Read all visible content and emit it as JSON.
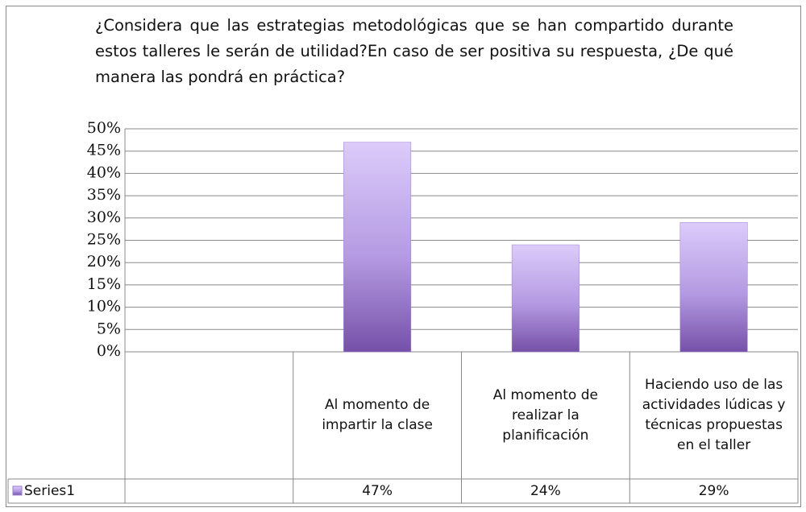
{
  "chart_data": {
    "type": "bar",
    "title": "¿Considera que las estrategias metodológicas que se han compartido durante estos talleres le serán de utilidad?En caso de ser positiva su respuesta, ¿De qué manera las pondrá en práctica?",
    "categories": [
      null,
      "Al momento de impartir la clase",
      "Al momento de realizar la planificación",
      "Haciendo uso de las actividades lúdicas y técnicas propuestas en el taller"
    ],
    "series": [
      {
        "name": "Series1",
        "color": "#9b7fd0",
        "values": [
          null,
          47,
          24,
          29
        ],
        "value_labels": [
          null,
          "47%",
          "24%",
          "29%"
        ]
      }
    ],
    "ylim": [
      0,
      50
    ],
    "yticks": [
      {
        "value": 0,
        "label": "0%"
      },
      {
        "value": 5,
        "label": "5%"
      },
      {
        "value": 10,
        "label": "10%"
      },
      {
        "value": 15,
        "label": "15%"
      },
      {
        "value": 20,
        "label": "20%"
      },
      {
        "value": 25,
        "label": "25%"
      },
      {
        "value": 30,
        "label": "30%"
      },
      {
        "value": 35,
        "label": "35%"
      },
      {
        "value": 40,
        "label": "40%"
      },
      {
        "value": 45,
        "label": "45%"
      },
      {
        "value": 50,
        "label": "50%"
      }
    ],
    "grid": true,
    "data_table": true
  }
}
